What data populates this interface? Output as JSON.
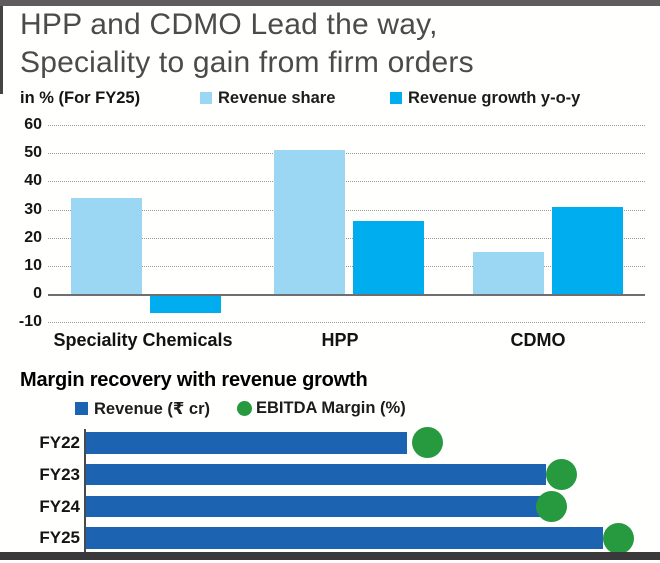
{
  "window": {
    "top_strip_color": "#5f5c60",
    "left_strip_color": "#454545",
    "bottom_strip_color": "#39393b",
    "background": "#fffffe"
  },
  "header": {
    "title_line1": "HPP and CDMO Lead the way,",
    "title_line2": "Speciality to gain from firm orders",
    "title_color": "#4b4b4b"
  },
  "top_chart": {
    "unit_label": "in % (For FY25)",
    "legend": [
      {
        "label": "Revenue share",
        "color": "#9bd7f3",
        "shape": "square"
      },
      {
        "label": "Revenue growth y-o-y",
        "color": "#00aeef",
        "shape": "square"
      }
    ]
  },
  "bottom_chart": {
    "title": "Margin recovery with revenue growth",
    "legend": [
      {
        "label": "Revenue (₹ cr)",
        "color": "#1c63b2",
        "shape": "square"
      },
      {
        "label": "EBITDA Margin (%)",
        "color": "#27993f",
        "shape": "circle"
      }
    ]
  },
  "chart_data": [
    {
      "type": "bar",
      "title": "HPP and CDMO Lead the way, Speciality to gain from firm orders",
      "subtitle": "in % (For FY25)",
      "categories": [
        "Speciality Chemicals",
        "HPP",
        "CDMO"
      ],
      "series": [
        {
          "name": "Revenue share",
          "color": "#9bd7f3",
          "values": [
            34,
            51,
            15
          ]
        },
        {
          "name": "Revenue growth y-o-y",
          "color": "#00aeef",
          "values": [
            -6,
            26,
            31
          ]
        }
      ],
      "ylim": [
        -10,
        60
      ],
      "yticks": [
        60,
        50,
        40,
        30,
        20,
        10,
        0,
        -10
      ],
      "grid": "dotted-horizontal",
      "legend_position": "top",
      "value_labels_shown": false
    },
    {
      "type": "bar",
      "orientation": "horizontal",
      "title": "Margin recovery with revenue growth",
      "categories": [
        "FY22",
        "FY23",
        "FY24",
        "FY25"
      ],
      "series": [
        {
          "name": "Revenue (₹ cr)",
          "color": "#1c63b2",
          "unit": "relative-length-pct-of-longest-bar",
          "values": [
            62,
            89,
            88,
            100
          ]
        },
        {
          "name": "EBITDA Margin (%)",
          "color": "#27993f",
          "marker": "circle",
          "unit": "relative-position-pct-of-longest-bar",
          "values": [
            66,
            92,
            90,
            103
          ]
        }
      ],
      "value_labels_shown": false,
      "legend_position": "top"
    }
  ]
}
